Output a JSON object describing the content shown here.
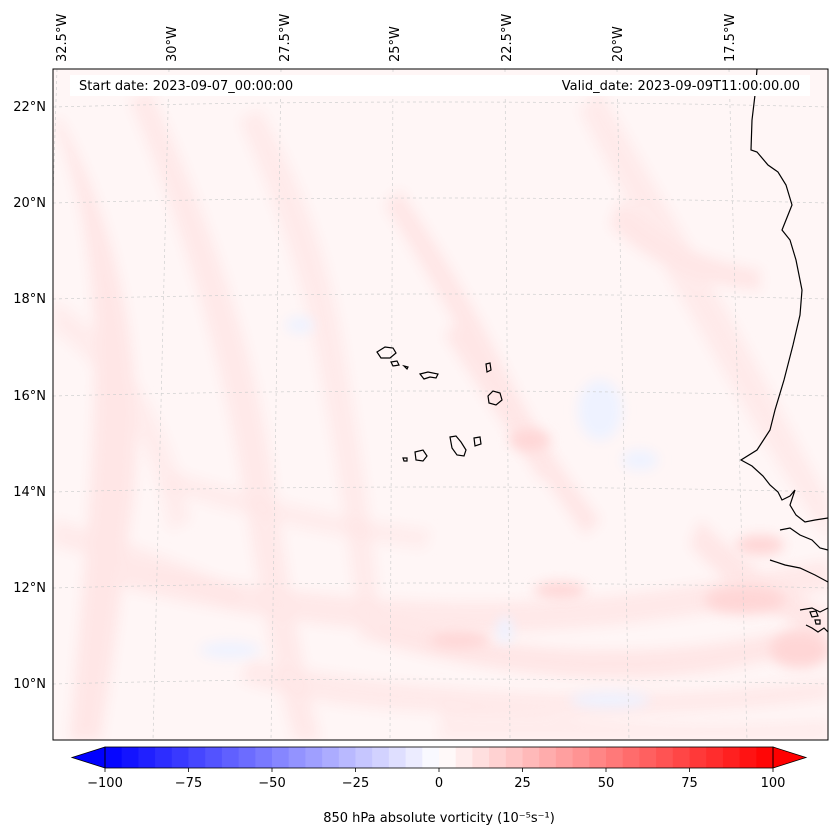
{
  "map": {
    "start_date": "Start date: 2023-09-07_00:00:00",
    "valid_date": "Valid_date: 2023-09-09T11:00:00.00",
    "lon_labels": [
      "32.5°W",
      "30°W",
      "27.5°W",
      "25°W",
      "22.5°W",
      "20°W",
      "17.5°W"
    ],
    "lat_labels": [
      "22°N",
      "20°N",
      "18°N",
      "16°N",
      "14°N",
      "12°N",
      "10°N"
    ],
    "field_colors": {
      "background": "#fff6f6",
      "light_pink": "#ffe9e9",
      "pink": "#ffdede",
      "light_blue": "#f1f4ff"
    },
    "coastline_color": "#000000",
    "gridline_color": "#cccccc"
  },
  "colorbar": {
    "label": "850 hPa absolute vorticity (10⁻⁵s⁻¹)",
    "ticks": [
      "−100",
      "−75",
      "−50",
      "−25",
      "0",
      "25",
      "50",
      "75",
      "100"
    ],
    "min": -100,
    "max": 100,
    "levels": 40,
    "extend": "both",
    "cmap": "bwr",
    "low_color": "#0000ff",
    "mid_color": "#ffffff",
    "high_color": "#ff0000"
  }
}
